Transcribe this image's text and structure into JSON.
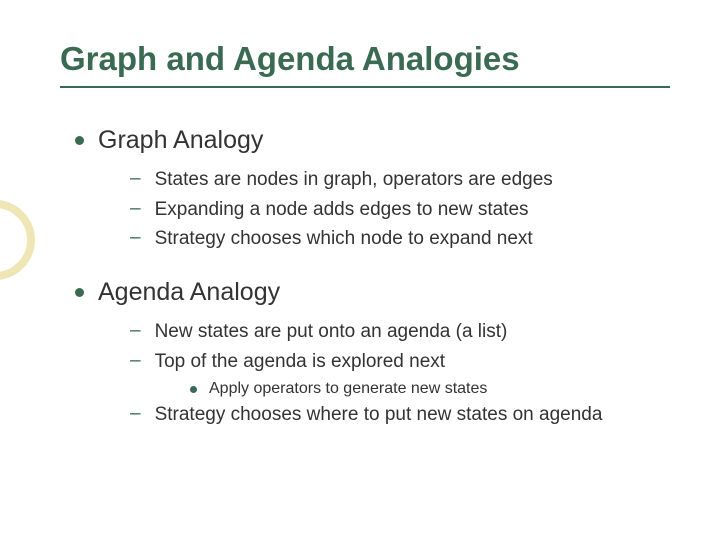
{
  "title": "Graph and Agenda Analogies",
  "colors": {
    "heading": "#3a6a51",
    "bullet": "#3a6a51",
    "text": "#333333",
    "ring": "#e6d98d",
    "background": "#ffffff"
  },
  "typography": {
    "font_family": "Arial",
    "title_size_pt": 25,
    "lvl1_size_pt": 19,
    "lvl2_size_pt": 14,
    "lvl3_size_pt": 12
  },
  "sections": [
    {
      "label": "Graph Analogy",
      "items": [
        {
          "text": "States are nodes in graph, operators are edges"
        },
        {
          "text": "Expanding a node adds edges to new states"
        },
        {
          "text": "Strategy chooses which node to expand next"
        }
      ]
    },
    {
      "label": "Agenda Analogy",
      "items": [
        {
          "text": "New states are put onto an agenda (a list)"
        },
        {
          "text": "Top of the agenda is explored next",
          "sub": [
            {
              "text": "Apply operators to generate new states"
            }
          ]
        },
        {
          "text": "Strategy chooses where to put new states on agenda"
        }
      ]
    }
  ]
}
